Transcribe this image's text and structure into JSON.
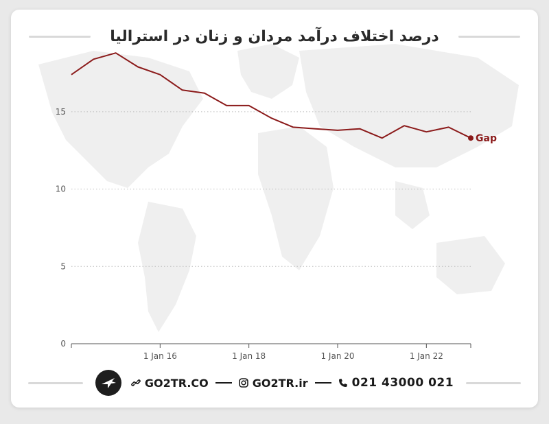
{
  "header": {
    "title": "درصد اختلاف درآمد مردان و زنان در استرالیا"
  },
  "footer": {
    "website": "GO2TR.CO",
    "instagram": "GO2TR.ir",
    "phone": "021 43000 021",
    "icons": [
      "logo-plane-icon",
      "link-icon",
      "instagram-icon",
      "phone-icon"
    ]
  },
  "colors": {
    "line": "#8b1a1a",
    "text": "#2a2a2a",
    "axis": "#555555",
    "grid": "#bdbdbd",
    "map": "#efefef"
  },
  "chart_data": {
    "type": "line",
    "title": "",
    "xlabel": "",
    "ylabel": "",
    "x_ticks": [
      "1 Jan 16",
      "1 Jan 18",
      "1 Jan 20",
      "1 Jan 22"
    ],
    "y_ticks": [
      "0",
      "5",
      "10",
      "15"
    ],
    "ylim": [
      0,
      18.5
    ],
    "xlim": [
      2014,
      2023
    ],
    "grid": "horizontal-dotted",
    "series": [
      {
        "name": "Gap",
        "x": [
          2014.0,
          2014.5,
          2015.0,
          2015.5,
          2016.0,
          2016.5,
          2017.0,
          2017.5,
          2018.0,
          2018.5,
          2019.0,
          2019.5,
          2020.0,
          2020.5,
          2021.0,
          2021.5,
          2022.0,
          2022.5,
          2023.0
        ],
        "y": [
          17.4,
          18.4,
          18.8,
          17.9,
          17.4,
          16.4,
          16.2,
          15.4,
          15.4,
          14.6,
          14.0,
          13.9,
          13.8,
          13.9,
          13.3,
          14.1,
          13.7,
          14.0,
          13.3
        ]
      }
    ]
  }
}
